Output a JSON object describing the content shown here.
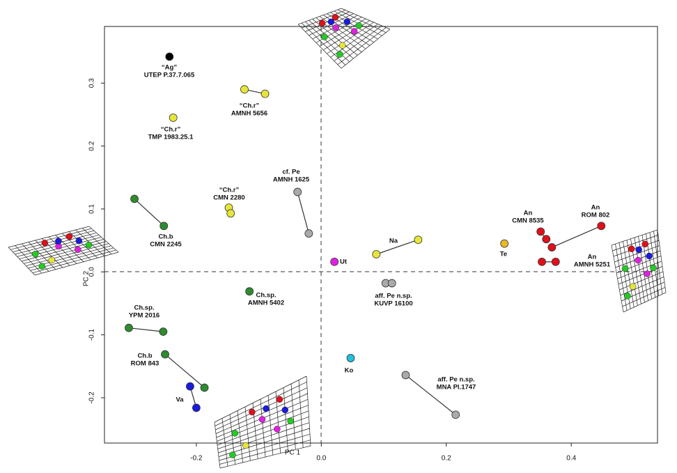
{
  "chart_data": {
    "type": "scatter",
    "x_label": "PC 1",
    "y_label": "PC 2",
    "xlim": [
      -0.347,
      0.538
    ],
    "ylim": [
      -0.272,
      0.39
    ],
    "xticks": [
      -0.2,
      {
        "value": 0,
        "label": "0.0"
      },
      0.2,
      0.4
    ],
    "yticks": [
      {
        "value": -0.2,
        "label": "-0.2"
      },
      {
        "value": -0.1,
        "label": "-0.1"
      },
      {
        "value": 0,
        "label": "0.0"
      },
      0.1,
      0.2,
      0.3
    ],
    "series": [
      {
        "labels": [
          "“Ag”",
          "UTEP P.37.7.065"
        ],
        "color": "#000000",
        "x": [
          -0.243
        ],
        "y": [
          0.342
        ]
      },
      {
        "labels": [
          "“Ch.r”",
          "TMP 1983.25.1"
        ],
        "color": "#e6e63a",
        "x": [
          -0.237
        ],
        "y": [
          0.245
        ]
      },
      {
        "labels": [
          "“Ch.r”",
          "AMNH 5656"
        ],
        "color": "#e6e63a",
        "x": [
          -0.123,
          -0.09
        ],
        "y": [
          0.29,
          0.283
        ]
      },
      {
        "labels": [
          "“Ch.r”",
          "CMN 2280"
        ],
        "color": "#e6e63a",
        "x": [
          -0.148,
          -0.145
        ],
        "y": [
          0.102,
          0.093
        ]
      },
      {
        "labels": [
          "Ch.b",
          "CMN 2245"
        ],
        "color": "#2e8b2e",
        "x": [
          -0.299,
          -0.252
        ],
        "y": [
          0.116,
          0.073
        ]
      },
      {
        "labels": [
          "cf. Pe",
          "AMNH 1625"
        ],
        "color": "#aaaaaa",
        "x": [
          -0.038,
          -0.02
        ],
        "y": [
          0.127,
          0.061
        ]
      },
      {
        "labels": [
          "Ut"
        ],
        "color": "#e020e0",
        "x": [
          0.021
        ],
        "y": [
          0.016
        ]
      },
      {
        "labels": [
          "Na"
        ],
        "color": "#e6e63a",
        "x": [
          0.088,
          0.155
        ],
        "y": [
          0.028,
          0.051
        ]
      },
      {
        "labels": [
          "Te"
        ],
        "color": "#e6b82a",
        "x": [
          0.293
        ],
        "y": [
          0.045
        ]
      },
      {
        "labels": [
          "An",
          "CMN 8535"
        ],
        "color": "#e0101a",
        "x": [
          0.351,
          0.36
        ],
        "y": [
          0.064,
          0.052
        ]
      },
      {
        "labels": [
          "An",
          "ROM 802"
        ],
        "color": "#e0101a",
        "x": [
          0.369,
          0.448
        ],
        "y": [
          0.039,
          0.073
        ]
      },
      {
        "labels": [
          "An",
          "AMNH 5251"
        ],
        "color": "#e0101a",
        "x": [
          0.353,
          0.375
        ],
        "y": [
          0.016,
          0.016
        ]
      },
      {
        "labels": [
          "aff. Pe n.sp.",
          "KUVP 16100"
        ],
        "color": "#aaaaaa",
        "x": [
          0.103,
          0.113
        ],
        "y": [
          -0.018,
          -0.018
        ]
      },
      {
        "labels": [
          "Ch.sp.",
          "AMNH 5402"
        ],
        "color": "#2e8b2e",
        "x": [
          -0.115
        ],
        "y": [
          -0.031
        ]
      },
      {
        "labels": [
          "Ch.sp.",
          "YPM 2016"
        ],
        "color": "#2e8b2e",
        "x": [
          -0.308,
          -0.253
        ],
        "y": [
          -0.089,
          -0.095
        ]
      },
      {
        "labels": [
          "Ch.b",
          "ROM 843"
        ],
        "color": "#2e8b2e",
        "x": [
          -0.25,
          -0.187
        ],
        "y": [
          -0.131,
          -0.184
        ]
      },
      {
        "labels": [
          "Va"
        ],
        "color": "#1a1ae0",
        "x": [
          -0.21,
          -0.2
        ],
        "y": [
          -0.182,
          -0.216
        ]
      },
      {
        "labels": [
          "Ko"
        ],
        "color": "#20c0e0",
        "x": [
          0.047
        ],
        "y": [
          -0.137
        ]
      },
      {
        "labels": [
          "aff. Pe n.sp.",
          "MNA Pl.1747"
        ],
        "color": "#aaaaaa",
        "x": [
          0.135,
          0.215
        ],
        "y": [
          -0.164,
          -0.227
        ]
      }
    ]
  }
}
